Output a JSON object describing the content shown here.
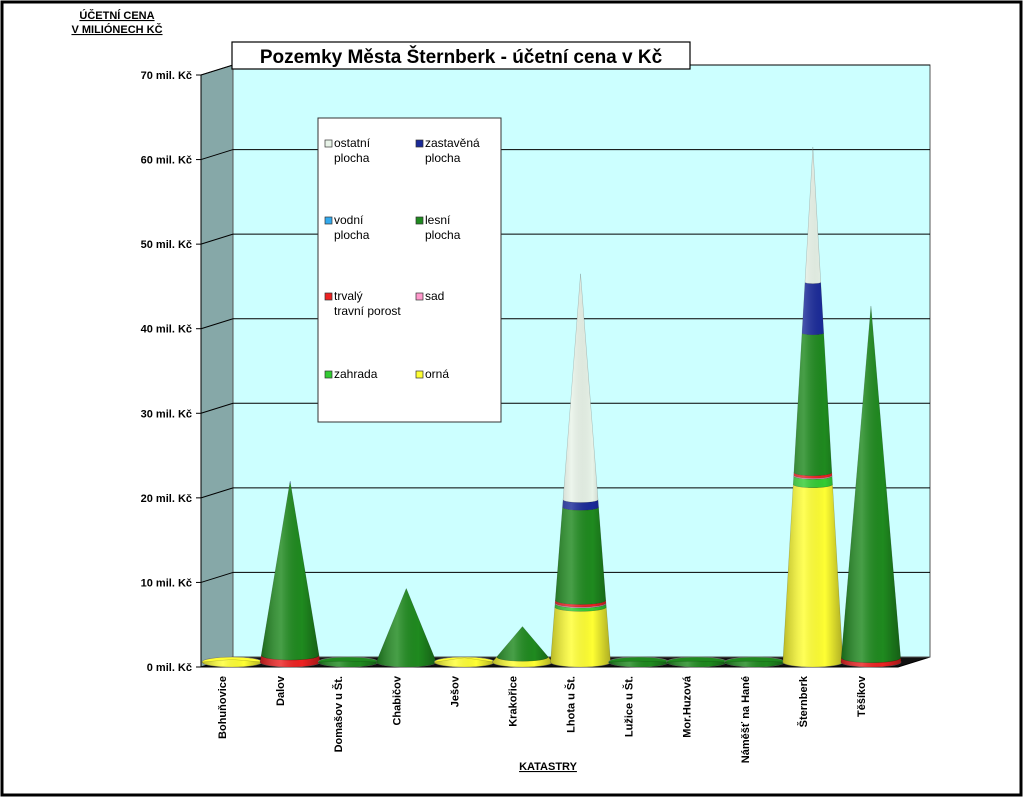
{
  "chart_data": {
    "type": "bar",
    "subtype": "3d-stacked-cone",
    "title": "Pozemky Města Šternberk - účetní cena v Kč",
    "ylabel_lines": [
      "ÚČETNÍ CENA",
      "V MILIÓNECH KČ"
    ],
    "xlabel": "KATASTRY",
    "ylim": [
      0,
      70
    ],
    "yticks": [
      0,
      10,
      20,
      30,
      40,
      50,
      60,
      70
    ],
    "ytick_labels": [
      "0 mil. Kč",
      "10 mil. Kč",
      "20 mil. Kč",
      "30 mil. Kč",
      "40 mil. Kč",
      "50 mil. Kč",
      "60 mil. Kč",
      "70 mil. Kč"
    ],
    "grid": true,
    "legend_position": "top-left inside plot",
    "categories": [
      "Bohuňovice",
      "Dalov",
      "Domašov u Št.",
      "Chabičov",
      "Ješov",
      "Krakořice",
      "Lhota u Št.",
      "Lužice u Št.",
      "Mor.Huzová",
      "Náměšť na Hané",
      "Šternberk",
      "Těšíkov"
    ],
    "series": [
      {
        "name": "orná",
        "color": "#ffff33",
        "values": [
          0.3,
          0,
          0,
          0,
          0.5,
          0.6,
          6.5,
          0,
          0,
          0,
          21.0,
          0
        ]
      },
      {
        "name": "zahrada",
        "color": "#33cc33",
        "values": [
          0,
          0,
          0,
          0,
          0,
          0,
          0.4,
          0,
          0,
          0,
          1.0,
          0
        ]
      },
      {
        "name": "sad",
        "color": "#ff99cc",
        "values": [
          0,
          0,
          0,
          0,
          0,
          0,
          0.1,
          0,
          0,
          0,
          0.1,
          0
        ]
      },
      {
        "name": "trvalý travní porost",
        "color": "#ee2222",
        "values": [
          0,
          0.8,
          0,
          0,
          0,
          0,
          0.3,
          0,
          0,
          0,
          0.3,
          0.5
        ]
      },
      {
        "name": "lesní plocha",
        "color": "#1f8a1f",
        "values": [
          0,
          20.3,
          0.1,
          8.7,
          0,
          3.6,
          11.0,
          0.1,
          0.1,
          0.1,
          16.5,
          41.6
        ]
      },
      {
        "name": "vodní plocha",
        "color": "#33aaee",
        "values": [
          0,
          0,
          0,
          0,
          0,
          0,
          0,
          0,
          0,
          0,
          0,
          0
        ]
      },
      {
        "name": "zastavěná plocha",
        "color": "#1a2a99",
        "values": [
          0,
          0.3,
          0,
          0,
          0,
          0,
          0.9,
          0,
          0,
          0,
          6.0,
          0
        ]
      },
      {
        "name": "ostatní plocha",
        "color": "#e8f3e8",
        "values": [
          0,
          0,
          0,
          0,
          0,
          0,
          26.7,
          0,
          0,
          0,
          16.0,
          0
        ]
      }
    ],
    "legend_order": [
      "ostatní plocha",
      "zastavěná plocha",
      "vodní plocha",
      "lesní plocha",
      "trvalý travní porost",
      "sad",
      "zahrada",
      "orná"
    ],
    "legend_labels": [
      {
        "lines": [
          "ostatní",
          "plocha"
        ],
        "color": "#e8f3e8"
      },
      {
        "lines": [
          "zastavěná",
          "plocha"
        ],
        "color": "#1a2a99"
      },
      {
        "lines": [
          "vodní",
          "plocha"
        ],
        "color": "#33aaee"
      },
      {
        "lines": [
          "lesní",
          "plocha"
        ],
        "color": "#1f8a1f"
      },
      {
        "lines": [
          "trvalý",
          "travní porost"
        ],
        "color": "#ee2222"
      },
      {
        "lines": [
          "sad"
        ],
        "color": "#ff99cc"
      },
      {
        "lines": [
          "zahrada"
        ],
        "color": "#33cc33"
      },
      {
        "lines": [
          "orná"
        ],
        "color": "#ffff33"
      }
    ],
    "colors": {
      "plot_background": "#ccffff",
      "side_wall": "#86a8a8",
      "frame_border": "#000000"
    }
  }
}
